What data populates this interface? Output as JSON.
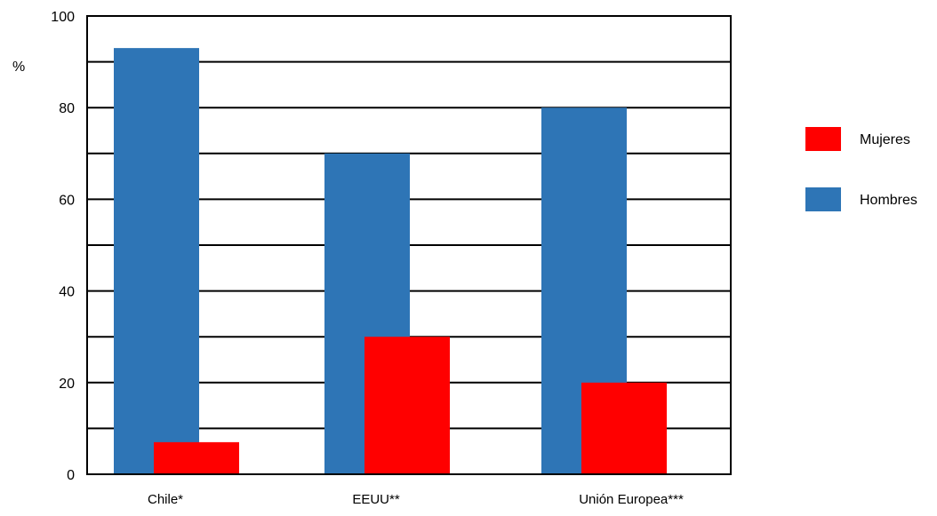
{
  "chart_data": {
    "type": "bar",
    "ylabel": "%",
    "ylim": [
      0,
      100
    ],
    "yticks": [
      0,
      20,
      40,
      60,
      80,
      100
    ],
    "grid_step": 10,
    "grid": true,
    "legend_position": "right",
    "categories": [
      "Chile*",
      "EEUU**",
      "Unión Europea***"
    ],
    "series": [
      {
        "name": "Hombres",
        "color": "#2e75b6",
        "values": [
          93,
          70,
          80
        ]
      },
      {
        "name": "Mujeres",
        "color": "#ff0000",
        "values": [
          7,
          30,
          20
        ]
      }
    ],
    "legend": [
      {
        "name": "Mujeres",
        "color": "#ff0000"
      },
      {
        "name": "Hombres",
        "color": "#2e75b6"
      }
    ]
  }
}
